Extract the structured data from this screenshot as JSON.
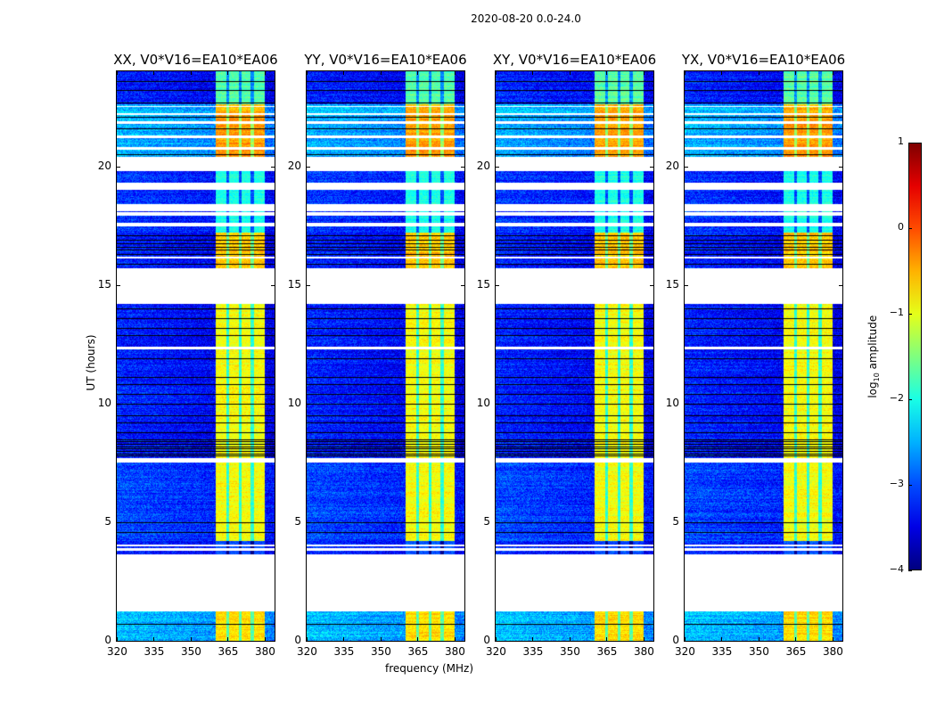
{
  "chart_data": {
    "type": "heatmap",
    "title": "2020-08-20 0.0-24.0",
    "xlabel": "frequency (MHz)",
    "ylabel": "UT (hours)",
    "xlim": [
      320,
      384
    ],
    "ylim": [
      0,
      24
    ],
    "xticks": [
      "320",
      "335",
      "350",
      "365",
      "380"
    ],
    "xtick_values": [
      320,
      335,
      350,
      365,
      380
    ],
    "yticks": [
      "0",
      "5",
      "10",
      "15",
      "20"
    ],
    "ytick_values": [
      0,
      5,
      10,
      15,
      20
    ],
    "panels": [
      {
        "title": "XX, V0*V16=EA10*EA06",
        "seed": 11
      },
      {
        "title": "YY, V0*V16=EA10*EA06",
        "seed": 23
      },
      {
        "title": "XY, V0*V16=EA10*EA06",
        "seed": 37
      },
      {
        "title": "YX, V0*V16=EA10*EA06",
        "seed": 53
      }
    ],
    "band_mhz": [
      360,
      380
    ],
    "band_notches_mhz": [
      365,
      370,
      375
    ],
    "segments": [
      {
        "t0": 22.6,
        "t1": 24.0,
        "bg": -3.2,
        "band": -1.7
      },
      {
        "t0": 22.2,
        "t1": 22.6,
        "bg": -2.4,
        "band": -0.5
      },
      {
        "t0": 21.0,
        "t1": 22.2,
        "bg": -2.5,
        "band": -0.4
      },
      {
        "t0": 20.4,
        "t1": 21.0,
        "bg": -2.5,
        "band": -0.35
      },
      {
        "t0": 17.2,
        "t1": 19.8,
        "bg": -3.1,
        "band": -2.0
      },
      {
        "t0": 15.7,
        "t1": 17.2,
        "bg": -3.2,
        "band": -0.6
      },
      {
        "t0": 7.7,
        "t1": 14.2,
        "bg": -3.2,
        "band": -0.9
      },
      {
        "t0": 4.2,
        "t1": 7.5,
        "bg": -3.0,
        "band": -0.9
      },
      {
        "t0": 3.65,
        "t1": 4.2,
        "bg": -3.2,
        "band": -3.0
      },
      {
        "t0": 0.0,
        "t1": 1.25,
        "bg": -2.4,
        "band": -0.7
      }
    ],
    "flagged_hours": [
      [
        1.25,
        3.65
      ],
      [
        3.8,
        3.9
      ],
      [
        4.0,
        4.05
      ],
      [
        7.5,
        7.7
      ],
      [
        12.3,
        12.4
      ],
      [
        14.2,
        15.7
      ],
      [
        16.1,
        16.2
      ],
      [
        17.45,
        17.6
      ],
      [
        17.9,
        18.05
      ],
      [
        18.1,
        18.4
      ],
      [
        19.0,
        19.3
      ],
      [
        19.8,
        20.4
      ],
      [
        20.7,
        20.8
      ],
      [
        21.2,
        21.3
      ],
      [
        21.8,
        21.9
      ],
      [
        22.15,
        22.25
      ],
      [
        22.5,
        22.55
      ]
    ],
    "dark_rows_hours": [
      0.7,
      4.6,
      5.0,
      7.8,
      7.9,
      8.0,
      8.1,
      8.2,
      8.3,
      8.4,
      8.5,
      8.8,
      9.2,
      9.5,
      10.0,
      10.4,
      10.8,
      11.1,
      11.9,
      12.9,
      13.2,
      13.6,
      14.0,
      15.9,
      16.3,
      16.5,
      16.6,
      16.75,
      16.9,
      17.1,
      20.5,
      21.6,
      22.1,
      22.7,
      23.2,
      23.6
    ],
    "colorbar": {
      "label": "log10 amplitude",
      "label_main": "log",
      "label_sub": "10",
      "label_rest": " amplitude",
      "range": [
        -4,
        1
      ],
      "ticks": [
        "1",
        "0",
        "−1",
        "−2",
        "−3",
        "−4"
      ],
      "tick_values": [
        1,
        0,
        -1,
        -2,
        -3,
        -4
      ],
      "colormap": "jet"
    }
  }
}
